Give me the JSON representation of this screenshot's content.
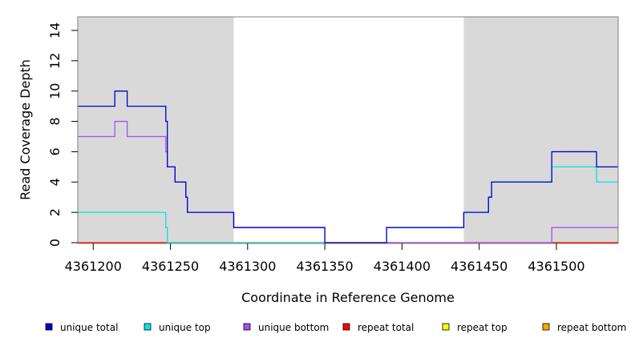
{
  "chart_data": {
    "type": "line",
    "title": "",
    "xlabel": "Coordinate in Reference Genome",
    "ylabel": "Read Coverage Depth",
    "xlim": [
      4361190,
      4361540
    ],
    "ylim": [
      0,
      15
    ],
    "x_ticks": [
      4361200,
      4361250,
      4361300,
      4361350,
      4361400,
      4361450,
      4361500
    ],
    "x_tick_labels": [
      "4361200",
      "4361250",
      "4361300",
      "4361350",
      "4361400",
      "4361450",
      "4361500"
    ],
    "y_ticks": [
      0,
      2,
      4,
      6,
      8,
      10,
      12,
      14
    ],
    "y_tick_labels": [
      "0",
      "2",
      "4",
      "6",
      "8",
      "10",
      "12",
      "14"
    ],
    "shaded_regions": [
      [
        4361190,
        4361291
      ],
      [
        4361440,
        4361540
      ]
    ],
    "shade_color": "#d9d9d9",
    "legend_position": "bottom",
    "series": [
      {
        "name": "unique total",
        "color": "#0000cc",
        "steps": [
          [
            4361190,
            9
          ],
          [
            4361214,
            10
          ],
          [
            4361222,
            9
          ],
          [
            4361247,
            8
          ],
          [
            4361248,
            5
          ],
          [
            4361253,
            4
          ],
          [
            4361260,
            3
          ],
          [
            4361261,
            2
          ],
          [
            4361291,
            1
          ],
          [
            4361350,
            0
          ],
          [
            4361390,
            1
          ],
          [
            4361440,
            2
          ],
          [
            4361456,
            3
          ],
          [
            4361458,
            4
          ],
          [
            4361497,
            6
          ],
          [
            4361526,
            5
          ],
          [
            4361540,
            5
          ]
        ]
      },
      {
        "name": "unique top",
        "color": "#00e5e5",
        "steps": [
          [
            4361190,
            2
          ],
          [
            4361247,
            1
          ],
          [
            4361248,
            0
          ],
          [
            4361390,
            1
          ],
          [
            4361440,
            2
          ],
          [
            4361456,
            3
          ],
          [
            4361458,
            4
          ],
          [
            4361497,
            5
          ],
          [
            4361526,
            4
          ],
          [
            4361540,
            4
          ]
        ]
      },
      {
        "name": "unique bottom",
        "color": "#a64dff",
        "steps": [
          [
            4361190,
            7
          ],
          [
            4361214,
            8
          ],
          [
            4361222,
            7
          ],
          [
            4361247,
            6
          ],
          [
            4361248,
            5
          ],
          [
            4361253,
            4
          ],
          [
            4361260,
            3
          ],
          [
            4361261,
            2
          ],
          [
            4361291,
            1
          ],
          [
            4361350,
            0
          ],
          [
            4361497,
            1
          ],
          [
            4361540,
            1
          ]
        ]
      },
      {
        "name": "repeat total",
        "color": "#ff0000",
        "steps": [
          [
            4361190,
            0
          ],
          [
            4361540,
            0
          ]
        ]
      },
      {
        "name": "repeat top",
        "color": "#ffff00",
        "steps": [
          [
            4361190,
            0
          ],
          [
            4361540,
            0
          ]
        ]
      },
      {
        "name": "repeat bottom",
        "color": "#ffa500",
        "steps": [
          [
            4361190,
            0
          ],
          [
            4361540,
            0
          ]
        ]
      }
    ]
  }
}
